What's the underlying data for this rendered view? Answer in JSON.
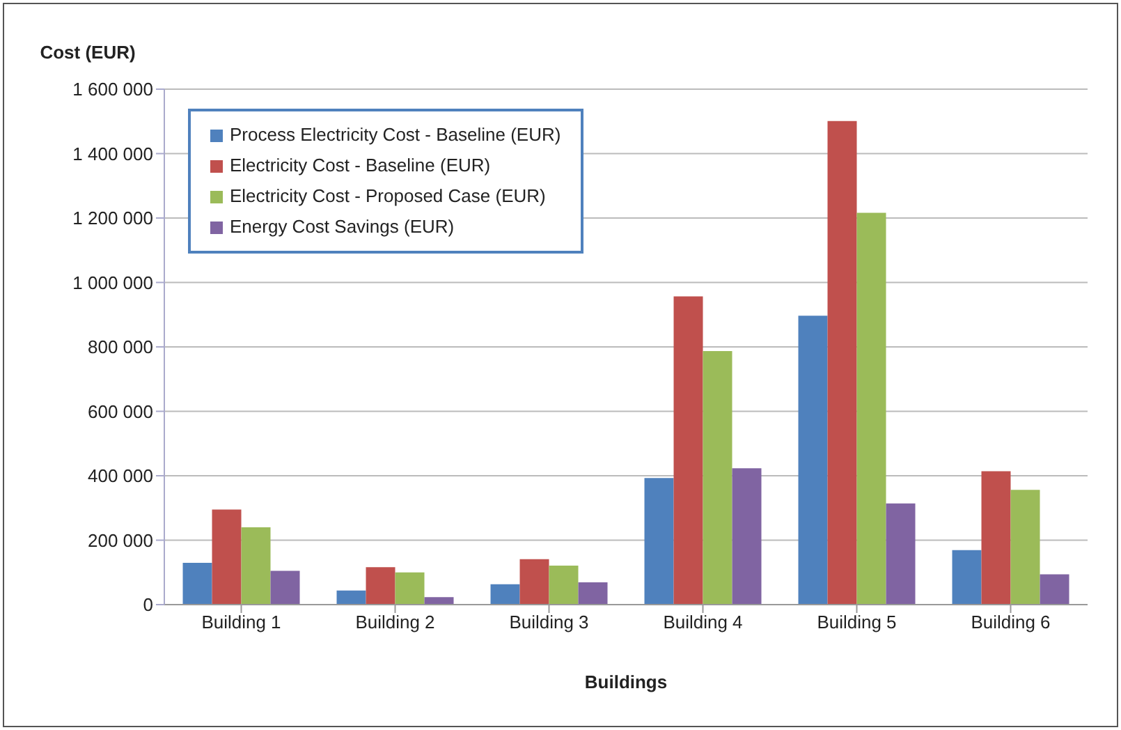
{
  "chart_data": {
    "type": "bar",
    "xlabel": "Buildings",
    "ylabel": "Cost (EUR)",
    "categories": [
      "Building 1",
      "Building 2",
      "Building 3",
      "Building 4",
      "Building 5",
      "Building 6"
    ],
    "series": [
      {
        "name": "Process Electricity Cost - Baseline (EUR)",
        "color": "#4f81bd",
        "values": [
          130000,
          44000,
          63000,
          393000,
          897000,
          169000
        ]
      },
      {
        "name": "Electricity Cost - Baseline (EUR)",
        "color": "#c0504d",
        "values": [
          295000,
          116000,
          141000,
          957000,
          1501000,
          414000
        ]
      },
      {
        "name": "Electricity Cost - Proposed Case (EUR)",
        "color": "#9bbb59",
        "values": [
          240000,
          100000,
          121000,
          787000,
          1216000,
          356000
        ]
      },
      {
        "name": "Energy Cost Savings (EUR)",
        "color": "#8064a2",
        "values": [
          105000,
          23000,
          69000,
          423000,
          314000,
          94000
        ]
      }
    ],
    "ylim": [
      0,
      1600000
    ],
    "yticks": [
      0,
      {
        "value": 200000,
        "label": "200 000"
      },
      {
        "value": 400000,
        "label": "400 000"
      },
      {
        "value": 600000,
        "label": "600 000"
      },
      {
        "value": 800000,
        "label": "800 000"
      },
      {
        "value": 1000000,
        "label": "1 000 000"
      },
      {
        "value": 1200000,
        "label": "1 200 000"
      },
      {
        "value": 1400000,
        "label": "1 400 000"
      },
      {
        "value": 1600000,
        "label": "1 600 000"
      }
    ],
    "grid": "y",
    "legend": "top left"
  }
}
